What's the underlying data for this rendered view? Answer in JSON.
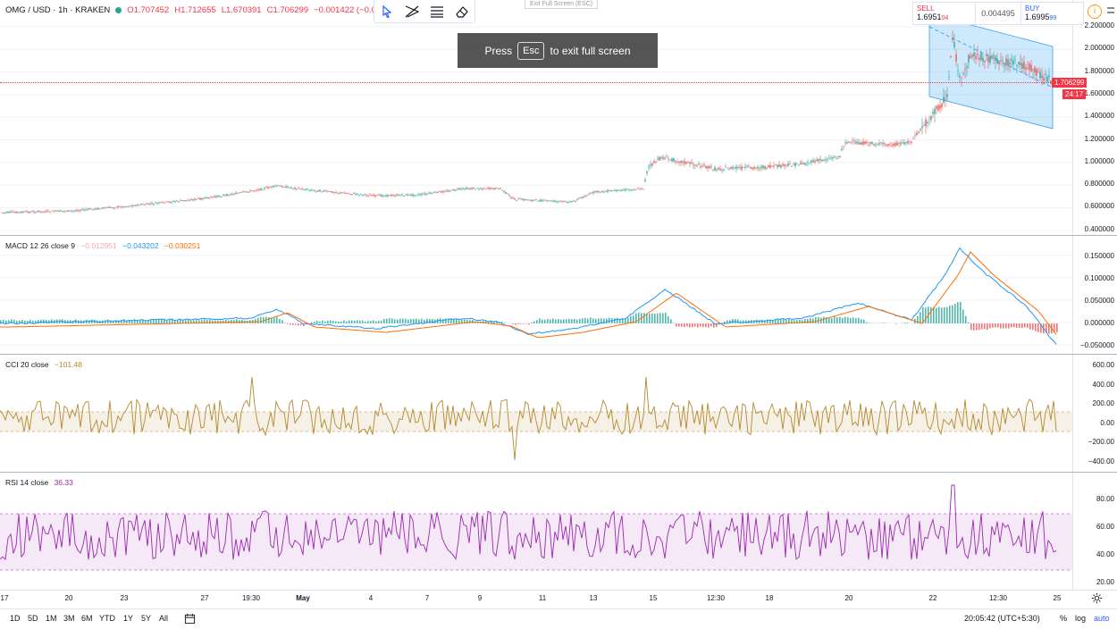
{
  "header": {
    "symbol": "OMG / USD · 1h · KRAKEN",
    "open": "O1.707452",
    "high": "H1.712655",
    "low": "L1.670391",
    "close": "C1.706299",
    "change": "−0.001422 (−0.08%)"
  },
  "fullscreen": {
    "top_hint": "Exit Full Screen (ESC)",
    "press": "Press",
    "key": "Esc",
    "message": "to exit full screen"
  },
  "trade": {
    "sell_label": "SELL",
    "sell_price_main": "1.6951",
    "sell_price_small": "04",
    "spread": "0.004495",
    "buy_label": "BUY",
    "buy_price_main": "1.6995",
    "buy_price_small": "99"
  },
  "price_axis": {
    "ticks": [
      "2.200000",
      "2.000000",
      "1.800000",
      "1.600000",
      "1.400000",
      "1.200000",
      "1.000000",
      "0.800000",
      "0.600000",
      "0.400000"
    ],
    "last_price": "1.706299",
    "countdown": "24:17",
    "last_price_color": "#f23645"
  },
  "macd": {
    "label": "MACD 12 26 close 9",
    "v1": "−0.012951",
    "v2": "−0.043202",
    "v3": "−0.030251",
    "ticks": [
      "0.150000",
      "0.100000",
      "0.050000",
      "0.000000",
      "−0.050000"
    ],
    "macd_color": "#2196f3",
    "signal_color": "#ff6d00"
  },
  "cci": {
    "label": "CCI 20 close",
    "value": "−101.48",
    "ticks": [
      "600.00",
      "400.00",
      "200.00",
      "0.00",
      "−200.00",
      "−400.00"
    ],
    "color": "#b5882e"
  },
  "rsi": {
    "label": "RSI 14 close",
    "value": "36.33",
    "ticks": [
      "80.00",
      "60.00",
      "40.00",
      "20.00"
    ],
    "color": "#9c27b0"
  },
  "time_axis": [
    "17",
    "20",
    "23",
    "27",
    "19:30",
    "May",
    "4",
    "7",
    "9",
    "11",
    "13",
    "15",
    "12:30",
    "18",
    "20",
    "22",
    "12:30",
    "25"
  ],
  "bottom": {
    "ranges": [
      "1D",
      "5D",
      "1M",
      "3M",
      "6M",
      "YTD",
      "1Y",
      "5Y",
      "All"
    ],
    "clock": "20:05:42 (UTC+5:30)",
    "percent": "%",
    "log": "log",
    "auto": "auto"
  },
  "icons": [
    "cursor-icon",
    "trend-tool-icon",
    "fib-tool-icon",
    "eraser-icon",
    "info-icon",
    "minus-icon",
    "calendar-icon",
    "gear-icon"
  ]
}
